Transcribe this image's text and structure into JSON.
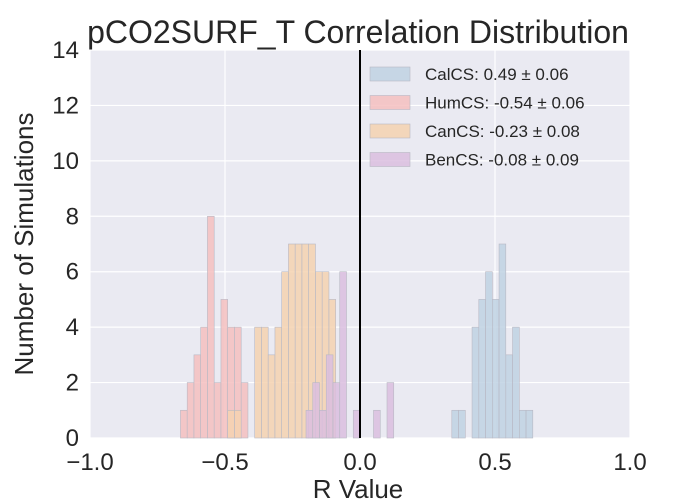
{
  "chart_data": {
    "type": "bar",
    "title": "pCO2SURF_T Correlation Distribution",
    "xlabel": "R Value",
    "ylabel": "Number of Simulations",
    "xlim": [
      -1.0,
      1.0
    ],
    "ylim": [
      0,
      14
    ],
    "xticks": [
      "−1.0",
      "−0.5",
      "0.0",
      "0.5",
      "1.0"
    ],
    "yticks": [
      "0",
      "2",
      "4",
      "6",
      "8",
      "10",
      "12",
      "14"
    ],
    "xtick_values": [
      -1.0,
      -0.5,
      0.0,
      0.5,
      1.0
    ],
    "ytick_values": [
      0,
      2,
      4,
      6,
      8,
      10,
      12,
      14
    ],
    "grid": true,
    "legend_position": "top-right",
    "vline_x": 0.0,
    "series": [
      {
        "name": "CalCS: 0.49 ± 0.06",
        "color": "#c0d2e3",
        "bins": [
          {
            "x0": 0.34,
            "x1": 0.365,
            "count": 1
          },
          {
            "x0": 0.365,
            "x1": 0.39,
            "count": 1
          },
          {
            "x0": 0.39,
            "x1": 0.415,
            "count": 0
          },
          {
            "x0": 0.415,
            "x1": 0.44,
            "count": 4
          },
          {
            "x0": 0.44,
            "x1": 0.465,
            "count": 5
          },
          {
            "x0": 0.465,
            "x1": 0.49,
            "count": 6
          },
          {
            "x0": 0.49,
            "x1": 0.515,
            "count": 5
          },
          {
            "x0": 0.515,
            "x1": 0.54,
            "count": 7
          },
          {
            "x0": 0.54,
            "x1": 0.565,
            "count": 3
          },
          {
            "x0": 0.565,
            "x1": 0.59,
            "count": 4
          },
          {
            "x0": 0.59,
            "x1": 0.615,
            "count": 1
          },
          {
            "x0": 0.615,
            "x1": 0.64,
            "count": 1
          }
        ]
      },
      {
        "name": "HumCS: -0.54 ± 0.06",
        "color": "#f5bfc0",
        "bins": [
          {
            "x0": -0.665,
            "x1": -0.64,
            "count": 1
          },
          {
            "x0": -0.64,
            "x1": -0.615,
            "count": 2
          },
          {
            "x0": -0.615,
            "x1": -0.59,
            "count": 3
          },
          {
            "x0": -0.59,
            "x1": -0.565,
            "count": 4
          },
          {
            "x0": -0.565,
            "x1": -0.54,
            "count": 8
          },
          {
            "x0": -0.54,
            "x1": -0.515,
            "count": 2
          },
          {
            "x0": -0.515,
            "x1": -0.49,
            "count": 5
          },
          {
            "x0": -0.49,
            "x1": -0.465,
            "count": 4
          },
          {
            "x0": -0.465,
            "x1": -0.44,
            "count": 4
          },
          {
            "x0": -0.44,
            "x1": -0.415,
            "count": 2
          }
        ]
      },
      {
        "name": "CanCS: -0.23 ± 0.08",
        "color": "#f5d2b0",
        "bins": [
          {
            "x0": -0.49,
            "x1": -0.465,
            "count": 1
          },
          {
            "x0": -0.465,
            "x1": -0.44,
            "count": 1
          },
          {
            "x0": -0.44,
            "x1": -0.415,
            "count": 0
          },
          {
            "x0": -0.415,
            "x1": -0.39,
            "count": 0
          },
          {
            "x0": -0.39,
            "x1": -0.365,
            "count": 4
          },
          {
            "x0": -0.365,
            "x1": -0.34,
            "count": 4
          },
          {
            "x0": -0.34,
            "x1": -0.315,
            "count": 3
          },
          {
            "x0": -0.315,
            "x1": -0.29,
            "count": 4
          },
          {
            "x0": -0.29,
            "x1": -0.265,
            "count": 6
          },
          {
            "x0": -0.265,
            "x1": -0.24,
            "count": 7
          },
          {
            "x0": -0.24,
            "x1": -0.215,
            "count": 7
          },
          {
            "x0": -0.215,
            "x1": -0.19,
            "count": 7
          },
          {
            "x0": -0.19,
            "x1": -0.165,
            "count": 7
          },
          {
            "x0": -0.165,
            "x1": -0.14,
            "count": 6
          },
          {
            "x0": -0.14,
            "x1": -0.115,
            "count": 6
          },
          {
            "x0": -0.115,
            "x1": -0.09,
            "count": 5
          }
        ]
      },
      {
        "name": "BenCS: -0.08 ± 0.09",
        "color": "#dbbedf",
        "bins": [
          {
            "x0": -0.2,
            "x1": -0.175,
            "count": 1
          },
          {
            "x0": -0.175,
            "x1": -0.15,
            "count": 2
          },
          {
            "x0": -0.15,
            "x1": -0.125,
            "count": 1
          },
          {
            "x0": -0.125,
            "x1": -0.1,
            "count": 3
          },
          {
            "x0": -0.1,
            "x1": -0.075,
            "count": 2
          },
          {
            "x0": -0.075,
            "x1": -0.05,
            "count": 6
          },
          {
            "x0": -0.05,
            "x1": -0.025,
            "count": 0
          },
          {
            "x0": -0.025,
            "x1": 0.0,
            "count": 1
          },
          {
            "x0": 0.0,
            "x1": 0.025,
            "count": 0
          },
          {
            "x0": 0.025,
            "x1": 0.05,
            "count": 0
          },
          {
            "x0": 0.05,
            "x1": 0.075,
            "count": 1
          },
          {
            "x0": 0.075,
            "x1": 0.1,
            "count": 0
          },
          {
            "x0": 0.1,
            "x1": 0.125,
            "count": 2
          }
        ]
      }
    ]
  },
  "colors": {
    "plot_background": "#eaeaf2",
    "grid": "#ffffff",
    "vline": "#000000",
    "text": "#262626"
  }
}
